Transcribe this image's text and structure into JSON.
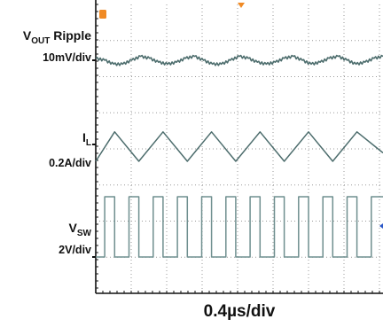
{
  "chart_data": {
    "type": "line",
    "title": "",
    "xlabel": "0.4µs/div",
    "x_units": "µs",
    "x_range": [
      0,
      3.2
    ],
    "grid": true,
    "series": [
      {
        "name": "VOUT Ripple",
        "label_main": "V",
        "label_sub": "OUT",
        "label_suffix": " Ripple",
        "scale": "10mV/div",
        "color": "#4d6d6d",
        "x": [
          0,
          0.1,
          0.2,
          0.3,
          0.4,
          0.5,
          0.6,
          0.7,
          0.8,
          0.9,
          1.0,
          1.1,
          1.2,
          1.3,
          1.4,
          1.5,
          1.6,
          1.7,
          1.8,
          1.9,
          2.0,
          2.1,
          2.2,
          2.3,
          2.4,
          2.5,
          2.6,
          2.7,
          2.8,
          2.9,
          3.0,
          3.1,
          3.2
        ],
        "y": [
          1,
          0,
          -2,
          -2,
          0,
          2,
          1,
          -1,
          -2,
          -1,
          1,
          2,
          0,
          -2,
          -2,
          0,
          2,
          1,
          -1,
          -2,
          -1,
          1,
          2,
          0,
          -2,
          -1,
          1,
          2,
          0,
          -2,
          -1,
          1,
          2
        ]
      },
      {
        "name": "IL",
        "label_main": "I",
        "label_sub": "L",
        "label_suffix": "",
        "scale": "0.2A/div",
        "color": "#4d6d6d",
        "x": [
          0,
          0.21,
          0.48,
          0.75,
          1.02,
          1.29,
          1.56,
          1.83,
          2.1,
          2.37,
          2.64,
          2.91,
          3.2
        ],
        "y": [
          -0.2,
          0.15,
          -0.2,
          0.15,
          -0.2,
          0.15,
          -0.2,
          0.15,
          -0.2,
          0.15,
          -0.2,
          0.15,
          -0.1
        ]
      },
      {
        "name": "VSW",
        "label_main": "V",
        "label_sub": "SW",
        "label_suffix": "",
        "scale": "2V/div",
        "color": "#6f8f8f",
        "x": [
          0,
          0.1,
          0.1,
          0.21,
          0.21,
          0.37,
          0.37,
          0.48,
          0.48,
          0.64,
          0.64,
          0.75,
          0.75,
          0.91,
          0.91,
          1.02,
          1.02,
          1.18,
          1.18,
          1.29,
          1.29,
          1.45,
          1.45,
          1.56,
          1.56,
          1.72,
          1.72,
          1.83,
          1.83,
          1.99,
          1.99,
          2.1,
          2.1,
          2.26,
          2.26,
          2.37,
          2.37,
          2.53,
          2.53,
          2.64,
          2.64,
          2.8,
          2.8,
          2.91,
          2.91,
          3.07,
          3.07,
          3.2
        ],
        "y": [
          0,
          0,
          5,
          5,
          0,
          0,
          5,
          5,
          0,
          0,
          5,
          5,
          0,
          0,
          5,
          5,
          0,
          0,
          5,
          5,
          0,
          0,
          5,
          5,
          0,
          0,
          5,
          5,
          0,
          0,
          5,
          5,
          0,
          0,
          5,
          5,
          0,
          0,
          5,
          5,
          0,
          0,
          5,
          5,
          0,
          0,
          5,
          5
        ]
      }
    ]
  }
}
